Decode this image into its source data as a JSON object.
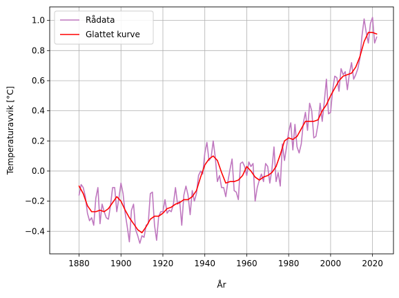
{
  "chart_data": {
    "type": "line",
    "xlabel": "År",
    "ylabel": "Temperaturavvik [°C]",
    "xlim": [
      1866,
      2030
    ],
    "ylim": [
      -0.55,
      1.09
    ],
    "xticks": [
      1880,
      1900,
      1920,
      1940,
      1960,
      1980,
      2000,
      2020
    ],
    "yticks": [
      -0.4,
      -0.2,
      0.0,
      0.2,
      0.4,
      0.6,
      0.8,
      1.0
    ],
    "ytick_labels": [
      "−0.4",
      "−0.2",
      "0.0",
      "0.2",
      "0.4",
      "0.6",
      "0.8",
      "1.0"
    ],
    "grid": true,
    "legend_position": "top-left",
    "series": [
      {
        "name": "Rådata",
        "color": "#bf77bf",
        "x": [
          1880,
          1881,
          1882,
          1883,
          1884,
          1885,
          1886,
          1887,
          1888,
          1889,
          1890,
          1891,
          1892,
          1893,
          1894,
          1895,
          1896,
          1897,
          1898,
          1899,
          1900,
          1901,
          1902,
          1903,
          1904,
          1905,
          1906,
          1907,
          1908,
          1909,
          1910,
          1911,
          1912,
          1913,
          1914,
          1915,
          1916,
          1917,
          1918,
          1919,
          1920,
          1921,
          1922,
          1923,
          1924,
          1925,
          1926,
          1927,
          1928,
          1929,
          1930,
          1931,
          1932,
          1933,
          1934,
          1935,
          1936,
          1937,
          1938,
          1939,
          1940,
          1941,
          1942,
          1943,
          1944,
          1945,
          1946,
          1947,
          1948,
          1949,
          1950,
          1951,
          1952,
          1953,
          1954,
          1955,
          1956,
          1957,
          1958,
          1959,
          1960,
          1961,
          1962,
          1963,
          1964,
          1965,
          1966,
          1967,
          1968,
          1969,
          1970,
          1971,
          1972,
          1973,
          1974,
          1975,
          1976,
          1977,
          1978,
          1979,
          1980,
          1981,
          1982,
          1983,
          1984,
          1985,
          1986,
          1987,
          1988,
          1989,
          1990,
          1991,
          1992,
          1993,
          1994,
          1995,
          1996,
          1997,
          1998,
          1999,
          2000,
          2001,
          2002,
          2003,
          2004,
          2005,
          2006,
          2007,
          2008,
          2009,
          2010,
          2011,
          2012,
          2013,
          2014,
          2015,
          2016,
          2017,
          2018,
          2019,
          2020,
          2021,
          2022
        ],
        "values": [
          -0.16,
          -0.09,
          -0.11,
          -0.17,
          -0.28,
          -0.33,
          -0.31,
          -0.36,
          -0.18,
          -0.11,
          -0.35,
          -0.22,
          -0.27,
          -0.31,
          -0.32,
          -0.23,
          -0.11,
          -0.11,
          -0.27,
          -0.18,
          -0.08,
          -0.15,
          -0.28,
          -0.37,
          -0.47,
          -0.26,
          -0.22,
          -0.39,
          -0.43,
          -0.48,
          -0.43,
          -0.44,
          -0.36,
          -0.35,
          -0.15,
          -0.14,
          -0.36,
          -0.46,
          -0.3,
          -0.27,
          -0.27,
          -0.19,
          -0.28,
          -0.26,
          -0.27,
          -0.22,
          -0.11,
          -0.22,
          -0.2,
          -0.36,
          -0.16,
          -0.1,
          -0.16,
          -0.29,
          -0.13,
          -0.2,
          -0.15,
          -0.03,
          -0.0,
          -0.02,
          0.12,
          0.19,
          0.07,
          0.09,
          0.2,
          0.09,
          -0.07,
          -0.03,
          -0.11,
          -0.11,
          -0.17,
          -0.07,
          0.01,
          0.08,
          -0.13,
          -0.14,
          -0.19,
          0.05,
          0.06,
          0.03,
          -0.03,
          0.06,
          0.03,
          0.05,
          -0.2,
          -0.11,
          -0.06,
          -0.02,
          -0.07,
          0.05,
          0.03,
          -0.08,
          0.01,
          0.16,
          -0.07,
          -0.01,
          -0.1,
          0.18,
          0.07,
          0.16,
          0.26,
          0.32,
          0.14,
          0.31,
          0.16,
          0.12,
          0.18,
          0.32,
          0.39,
          0.27,
          0.45,
          0.4,
          0.22,
          0.23,
          0.31,
          0.45,
          0.33,
          0.46,
          0.61,
          0.38,
          0.39,
          0.54,
          0.63,
          0.62,
          0.53,
          0.68,
          0.64,
          0.66,
          0.54,
          0.65,
          0.72,
          0.61,
          0.64,
          0.68,
          0.75,
          0.9,
          1.01,
          0.92,
          0.85,
          0.98,
          1.02,
          0.85,
          0.89
        ]
      },
      {
        "name": "Glattet kurve",
        "color": "#ff0000",
        "x": [
          1880,
          1882,
          1884,
          1886,
          1888,
          1890,
          1892,
          1894,
          1896,
          1898,
          1900,
          1902,
          1904,
          1906,
          1908,
          1910,
          1912,
          1914,
          1916,
          1918,
          1920,
          1922,
          1924,
          1926,
          1928,
          1930,
          1932,
          1934,
          1936,
          1938,
          1940,
          1942,
          1944,
          1946,
          1948,
          1950,
          1952,
          1954,
          1956,
          1958,
          1960,
          1962,
          1964,
          1966,
          1968,
          1970,
          1972,
          1974,
          1976,
          1978,
          1980,
          1982,
          1984,
          1986,
          1988,
          1990,
          1992,
          1994,
          1996,
          1998,
          2000,
          2002,
          2004,
          2006,
          2008,
          2010,
          2012,
          2014,
          2016,
          2018,
          2020,
          2022
        ],
        "values": [
          -0.1,
          -0.15,
          -0.23,
          -0.27,
          -0.27,
          -0.26,
          -0.27,
          -0.25,
          -0.21,
          -0.17,
          -0.2,
          -0.26,
          -0.31,
          -0.35,
          -0.39,
          -0.41,
          -0.37,
          -0.32,
          -0.3,
          -0.3,
          -0.28,
          -0.25,
          -0.24,
          -0.22,
          -0.21,
          -0.19,
          -0.19,
          -0.17,
          -0.13,
          -0.04,
          0.04,
          0.08,
          0.1,
          0.07,
          -0.01,
          -0.08,
          -0.07,
          -0.07,
          -0.06,
          -0.03,
          0.03,
          0.0,
          -0.04,
          -0.06,
          -0.04,
          -0.03,
          -0.01,
          0.03,
          0.11,
          0.2,
          0.22,
          0.21,
          0.23,
          0.28,
          0.33,
          0.33,
          0.33,
          0.34,
          0.4,
          0.44,
          0.5,
          0.55,
          0.6,
          0.63,
          0.64,
          0.65,
          0.69,
          0.76,
          0.86,
          0.92,
          0.92,
          0.91
        ]
      }
    ]
  }
}
